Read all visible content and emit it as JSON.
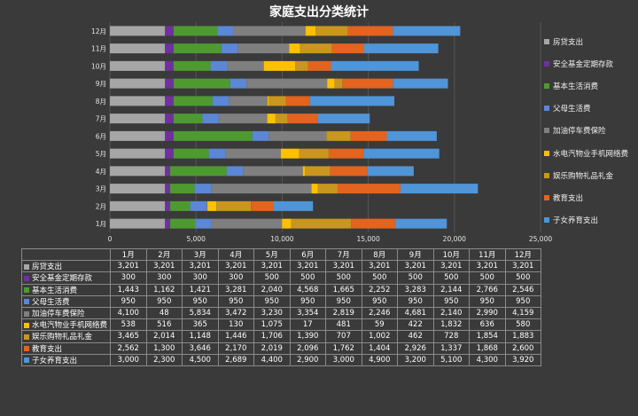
{
  "chart_data": {
    "type": "bar",
    "orientation": "horizontal",
    "stacked": true,
    "title": "家庭支出分类统计",
    "categories": [
      "1月",
      "2月",
      "3月",
      "4月",
      "5月",
      "6月",
      "7月",
      "8月",
      "9月",
      "10月",
      "11月",
      "12月"
    ],
    "xlim": [
      0,
      25000
    ],
    "x_ticks": [
      "0",
      "5,000",
      "10,000",
      "15,000",
      "20,000",
      "25,000"
    ],
    "grid": true,
    "legend_position": "right",
    "series": [
      {
        "name": "房贷支出",
        "color": "#a6a6a6",
        "values": [
          3201,
          3201,
          3201,
          3201,
          3201,
          3201,
          3201,
          3201,
          3201,
          3201,
          3201,
          3201
        ]
      },
      {
        "name": "安全基金定期存款",
        "color": "#7030a0",
        "values": [
          300,
          300,
          300,
          300,
          500,
          500,
          500,
          500,
          500,
          500,
          500,
          500
        ]
      },
      {
        "name": "基本生活消费",
        "color": "#4e9a30",
        "values": [
          1443,
          1162,
          1421,
          3281,
          2040,
          4568,
          1665,
          2252,
          3283,
          2144,
          2766,
          2546
        ]
      },
      {
        "name": "父母生活费",
        "color": "#5b87d6",
        "values": [
          950,
          950,
          950,
          950,
          950,
          950,
          950,
          950,
          950,
          950,
          950,
          950
        ]
      },
      {
        "name": "加油停车费保险",
        "color": "#7f7f7f",
        "values": [
          4100,
          48,
          5834,
          3472,
          3230,
          3354,
          2819,
          2246,
          4681,
          2140,
          2990,
          4159
        ]
      },
      {
        "name": "水电汽物业手机网络费",
        "color": "#ffc000",
        "values": [
          538,
          516,
          365,
          130,
          1075,
          17,
          481,
          59,
          422,
          1832,
          636,
          580
        ]
      },
      {
        "name": "娱乐购物礼品礼金",
        "color": "#c9961f",
        "values": [
          3465,
          2014,
          1148,
          1446,
          1706,
          1390,
          707,
          1002,
          462,
          728,
          1854,
          1883
        ]
      },
      {
        "name": "教育支出",
        "color": "#e2641f",
        "values": [
          2562,
          1300,
          3646,
          2170,
          2019,
          2096,
          1762,
          1404,
          2926,
          1337,
          1868,
          2600
        ]
      },
      {
        "name": "子女养育支出",
        "color": "#4f95d8",
        "values": [
          3000,
          2300,
          4500,
          2689,
          4400,
          2900,
          3000,
          4900,
          3200,
          5100,
          4300,
          3920
        ]
      }
    ]
  },
  "table": {
    "header": [
      "1月",
      "2月",
      "3月",
      "4月",
      "5月",
      "6月",
      "7月",
      "8月",
      "9月",
      "10月",
      "11月",
      "12月"
    ],
    "rows": [
      {
        "label": "房贷支出",
        "cells": [
          "3,201",
          "3,201",
          "3,201",
          "3,201",
          "3,201",
          "3,201",
          "3,201",
          "3,201",
          "3,201",
          "3,201",
          "3,201",
          "3,201"
        ]
      },
      {
        "label": "安全基金定期存款",
        "cells": [
          "300",
          "300",
          "300",
          "300",
          "500",
          "500",
          "500",
          "500",
          "500",
          "500",
          "500",
          "500"
        ]
      },
      {
        "label": "基本生活消费",
        "cells": [
          "1,443",
          "1,162",
          "1,421",
          "3,281",
          "2,040",
          "4,568",
          "1,665",
          "2,252",
          "3,283",
          "2,144",
          "2,766",
          "2,546"
        ]
      },
      {
        "label": "父母生活费",
        "cells": [
          "950",
          "950",
          "950",
          "950",
          "950",
          "950",
          "950",
          "950",
          "950",
          "950",
          "950",
          "950"
        ]
      },
      {
        "label": "加油停车费保险",
        "cells": [
          "4,100",
          "48",
          "5,834",
          "3,472",
          "3,230",
          "3,354",
          "2,819",
          "2,246",
          "4,681",
          "2,140",
          "2,990",
          "4,159"
        ]
      },
      {
        "label": "水电汽物业手机网络费",
        "cells": [
          "538",
          "516",
          "365",
          "130",
          "1,075",
          "17",
          "481",
          "59",
          "422",
          "1,832",
          "636",
          "580"
        ]
      },
      {
        "label": "娱乐购物礼品礼金",
        "cells": [
          "3,465",
          "2,014",
          "1,148",
          "1,446",
          "1,706",
          "1,390",
          "707",
          "1,002",
          "462",
          "728",
          "1,854",
          "1,883"
        ]
      },
      {
        "label": "教育支出",
        "cells": [
          "2,562",
          "1,300",
          "3,646",
          "2,170",
          "2,019",
          "2,096",
          "1,762",
          "1,404",
          "2,926",
          "1,337",
          "1,868",
          "2,600"
        ]
      },
      {
        "label": "子女养育支出",
        "cells": [
          "3,000",
          "2,300",
          "4,500",
          "2,689",
          "4,400",
          "2,900",
          "3,000",
          "4,900",
          "3,200",
          "5,100",
          "4,300",
          "3,920"
        ]
      }
    ]
  }
}
